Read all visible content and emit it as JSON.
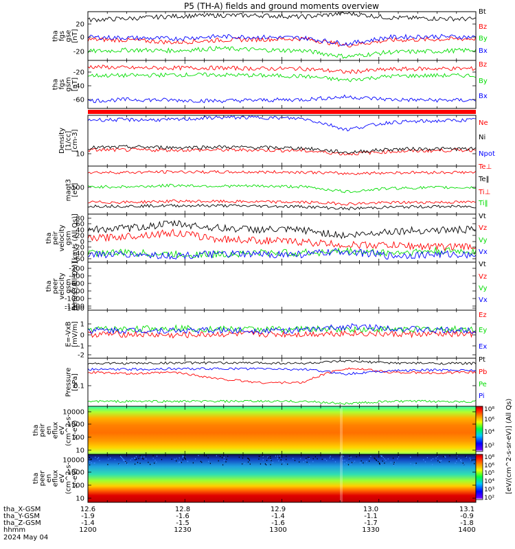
{
  "title": "P5 (TH-A) fields and ground moments overview",
  "colors": {
    "black": "#000000",
    "red": "#ff0000",
    "green": "#00dd00",
    "blue": "#0000ff"
  },
  "panels": [
    {
      "id": "fgs_gse",
      "ylabel": [
        "tha",
        "fgs",
        "gse",
        "[nT]"
      ],
      "scale": "linear",
      "range": [
        -30,
        35
      ],
      "ticks": [
        "20",
        "0",
        "-20"
      ],
      "legend": [
        {
          "text": "Bt",
          "color": "black"
        },
        {
          "text": "Bz",
          "color": "red"
        },
        {
          "text": "By",
          "color": "green"
        },
        {
          "text": "Bx",
          "color": "blue"
        }
      ]
    },
    {
      "id": "fgs_gsm",
      "ylabel": [
        "tha",
        "fgs",
        "gsm",
        "[nT]"
      ],
      "scale": "linear",
      "range": [
        -75,
        -5
      ],
      "ticks": [
        "-20",
        "-40",
        "-60"
      ],
      "legend": [
        {
          "text": "Bz",
          "color": "red"
        },
        {
          "text": "By",
          "color": "green"
        },
        {
          "text": "Bx",
          "color": "blue"
        }
      ]
    },
    {
      "id": "density",
      "ylabel": [
        "Density",
        "[1/cc]",
        "[cm-3]"
      ],
      "scale": "log",
      "range": [
        6,
        30
      ],
      "ticks": [
        "10"
      ],
      "legend": [
        {
          "text": "Ne",
          "color": "red"
        },
        {
          "text": "Ni",
          "color": "black"
        },
        {
          "text": "Npot",
          "color": "blue"
        }
      ]
    },
    {
      "id": "temperature",
      "ylabel": [
        "magt3",
        "[eV]"
      ],
      "scale": "log",
      "range": [
        20,
        400
      ],
      "ticks": [
        "100"
      ],
      "legend": [
        {
          "text": "Te⊥",
          "color": "red"
        },
        {
          "text": "Te‖",
          "color": "black"
        },
        {
          "text": "Ti⊥",
          "color": "red"
        },
        {
          "text": "Ti‖",
          "color": "green"
        }
      ]
    },
    {
      "id": "peir_velocity",
      "ylabel": [
        "tha",
        "peir",
        "velocity",
        "gsm",
        "[km/s (All Qs)]"
      ],
      "scale": "linear",
      "range": [
        -65,
        90
      ],
      "ticks": [
        "80",
        "60",
        "40",
        "20",
        "0",
        "-20",
        "-40",
        "-60"
      ],
      "legend": [
        {
          "text": "Vt",
          "color": "black"
        },
        {
          "text": "Vz",
          "color": "red"
        },
        {
          "text": "Vy",
          "color": "green"
        },
        {
          "text": "Vx",
          "color": "blue"
        }
      ]
    },
    {
      "id": "peer_velocity",
      "ylabel": [
        "tha",
        "peer",
        "velocity",
        "gsm",
        "[km/s (All Qs)]"
      ],
      "scale": "linear",
      "range": [
        -1500,
        -150
      ],
      "ticks": [
        "-200",
        "-400",
        "-600",
        "-800",
        "-1000",
        "-1200",
        "-1400"
      ],
      "legend": [
        {
          "text": "Vt",
          "color": "black"
        },
        {
          "text": "Vz",
          "color": "red"
        },
        {
          "text": "Vy",
          "color": "green"
        },
        {
          "text": "Vx",
          "color": "blue"
        }
      ]
    },
    {
      "id": "efield",
      "ylabel": [
        "E=-VxB",
        "[mV/m]"
      ],
      "scale": "linear",
      "range": [
        -2.2,
        1.6
      ],
      "ticks": [
        "1",
        "0",
        "-1",
        "-2"
      ],
      "legend": [
        {
          "text": "Ez",
          "color": "red"
        },
        {
          "text": "Ey",
          "color": "green"
        },
        {
          "text": "Ex",
          "color": "blue"
        }
      ]
    },
    {
      "id": "pressure",
      "ylabel": [
        "Pressure",
        "[nPa]"
      ],
      "scale": "log",
      "range": [
        0.03,
        0.5
      ],
      "ticks": [
        "0.1"
      ],
      "legend": [
        {
          "text": "Pt",
          "color": "black"
        },
        {
          "text": "Pb",
          "color": "red"
        },
        {
          "text": "Pe",
          "color": "green"
        },
        {
          "text": "Pi",
          "color": "blue"
        }
      ]
    },
    {
      "id": "peir_eflux",
      "ylabel": [
        "tha",
        "peir",
        "en",
        "eflux",
        "eV",
        "(cm^2-s-",
        "sr-eV)"
      ],
      "scale": "log",
      "range": [
        10,
        15000
      ],
      "ticks": [
        "10000",
        "1000",
        "100",
        "10"
      ],
      "type": "spectrogram"
    },
    {
      "id": "peer_eflux",
      "ylabel": [
        "tha",
        "peer",
        "en",
        "eflux",
        "eV",
        "(cm^2-s-",
        "sr-eV)"
      ],
      "scale": "log",
      "range": [
        10,
        15000
      ],
      "ticks": [
        "10000",
        "1000",
        "100",
        "10"
      ],
      "type": "spectrogram"
    }
  ],
  "colorbar": {
    "label": "[eV/(cm^2-s-sr-eV)] (All Qs)",
    "labels_ion": [
      "10⁸",
      "10⁶",
      "10⁴",
      "10²"
    ],
    "labels_elec": [
      "10⁸",
      "10⁶",
      "10⁵",
      "10⁴",
      "10³",
      "10²"
    ]
  },
  "xaxis": {
    "tick_labels": [
      {
        "t": "1200",
        "x": "12.6",
        "y": "-1.9",
        "z": "-1.4"
      },
      {
        "t": "1230",
        "x": "12.8",
        "y": "-1.6",
        "z": "-1.5"
      },
      {
        "t": "1300",
        "x": "12.9",
        "y": "-1.4",
        "z": "-1.6"
      },
      {
        "t": "1330",
        "x": "13.0",
        "y": "-1.1",
        "z": "-1.7"
      },
      {
        "t": "1400",
        "x": "13.1",
        "y": "-0.9",
        "z": "-1.8"
      }
    ],
    "row_labels": [
      "tha_X-GSM",
      "tha_Y-GSM",
      "tha_Z-GSM",
      "hhmm"
    ],
    "date": "2024 May 04"
  },
  "chart_data": {
    "type": "line",
    "title": "P5 (TH-A) fields and ground moments overview",
    "xlabel": "hhmm",
    "x_range": [
      "1200",
      "1400"
    ],
    "notes": "Multi-panel time series; values estimated from axes. Values given at 1200,1215,1230,1245,1300,1315,1325,1330,1345,1400.",
    "x": [
      "1200",
      "1215",
      "1230",
      "1245",
      "1300",
      "1315",
      "1325",
      "1330",
      "1345",
      "1400"
    ],
    "panels": [
      {
        "name": "fgs_gse",
        "ylim": [
          -30,
          35
        ],
        "series": [
          {
            "name": "Bt",
            "values": [
              24,
              26,
              29,
              30,
              30,
              28,
              33,
              27,
              26,
              25
            ]
          },
          {
            "name": "Bz",
            "values": [
              -2,
              -3,
              -6,
              -3,
              -2,
              -1,
              -10,
              -3,
              -2,
              -1
            ]
          },
          {
            "name": "By",
            "values": [
              -18,
              -16,
              -17,
              -14,
              -16,
              -17,
              -25,
              -19,
              -18,
              -16
            ]
          },
          {
            "name": "Bx",
            "values": [
              1,
              0,
              -1,
              2,
              1,
              0,
              -8,
              1,
              2,
              1
            ]
          }
        ]
      },
      {
        "name": "fgs_gsm",
        "ylim": [
          -75,
          -5
        ],
        "series": [
          {
            "name": "Bz",
            "values": [
              -14,
              -16,
              -16,
              -16,
              -17,
              -17,
              -22,
              -18,
              -17,
              -17
            ]
          },
          {
            "name": "By",
            "values": [
              -27,
              -27,
              -26,
              -26,
              -27,
              -28,
              -34,
              -28,
              -27,
              -27
            ]
          },
          {
            "name": "Bx",
            "values": [
              -64,
              -62,
              -63,
              -64,
              -63,
              -62,
              -58,
              -62,
              -63,
              -63
            ]
          }
        ]
      },
      {
        "name": "density",
        "scale": "log",
        "ylim": [
          6,
          30
        ],
        "series": [
          {
            "name": "Ne",
            "values": [
              10,
              10,
              10,
              10,
              10,
              9.8,
              8.8,
              9.5,
              9.8,
              10
            ]
          },
          {
            "name": "Ni",
            "values": [
              10.7,
              11,
              10.8,
              11,
              10.8,
              10.6,
              9.2,
              10.2,
              10.4,
              10.3
            ]
          },
          {
            "name": "Npot",
            "values": [
              26,
              26,
              26,
              28,
              28,
              27,
              19,
              24,
              25,
              26
            ]
          }
        ]
      },
      {
        "name": "temperature",
        "scale": "log",
        "ylim": [
          20,
          400
        ],
        "series": [
          {
            "name": "Te⊥",
            "values": [
              42,
              42,
              45,
              44,
              43,
              42,
              38,
              41,
              42,
              42
            ]
          },
          {
            "name": "Te‖",
            "values": [
              33,
              33,
              34,
              34,
              33,
              32,
              28,
              31,
              32,
              32
            ]
          },
          {
            "name": "Ti⊥",
            "values": [
              270,
              270,
              280,
              275,
              275,
              275,
              250,
              265,
              270,
              270
            ]
          },
          {
            "name": "Ti‖",
            "values": [
              110,
              110,
              120,
              115,
              115,
              110,
              80,
              100,
              105,
              105
            ]
          }
        ]
      },
      {
        "name": "peir_velocity",
        "ylim": [
          -65,
          90
        ],
        "series": [
          {
            "name": "Vt",
            "values": [
              40,
              45,
              60,
              45,
              40,
              38,
              20,
              35,
              38,
              40
            ]
          },
          {
            "name": "Vz",
            "values": [
              10,
              20,
              30,
              10,
              5,
              0,
              -10,
              -10,
              -15,
              -15
            ]
          },
          {
            "name": "Vy",
            "values": [
              -35,
              -35,
              -40,
              -40,
              -35,
              -35,
              -30,
              -35,
              -30,
              -30
            ]
          },
          {
            "name": "Vx",
            "values": [
              -40,
              -40,
              -45,
              -40,
              -40,
              -40,
              -30,
              -45,
              -40,
              -40
            ]
          }
        ]
      },
      {
        "name": "efield",
        "ylim": [
          -2.2,
          1.6
        ],
        "series": [
          {
            "name": "Ez",
            "values": [
              -0.3,
              -0.3,
              -0.4,
              -0.3,
              -0.3,
              -0.3,
              -0.2,
              -0.3,
              -0.3,
              -0.3
            ]
          },
          {
            "name": "Ey",
            "values": [
              0.1,
              0.1,
              0.2,
              0.1,
              0.1,
              0.1,
              0.1,
              0.1,
              0.1,
              0.1
            ]
          },
          {
            "name": "Ex",
            "values": [
              0,
              0,
              0,
              0,
              0,
              0,
              0.3,
              0.2,
              0,
              0
            ]
          }
        ]
      },
      {
        "name": "pressure",
        "scale": "log",
        "ylim": [
          0.03,
          0.5
        ],
        "series": [
          {
            "name": "Pt",
            "values": [
              0.37,
              0.37,
              0.38,
              0.38,
              0.38,
              0.37,
              0.42,
              0.38,
              0.37,
              0.37
            ]
          },
          {
            "name": "Pb",
            "values": [
              0.22,
              0.2,
              0.22,
              0.15,
              0.12,
              0.12,
              0.28,
              0.22,
              0.21,
              0.22
            ]
          },
          {
            "name": "Pe",
            "values": [
              0.04,
              0.04,
              0.04,
              0.04,
              0.04,
              0.04,
              0.035,
              0.04,
              0.04,
              0.04
            ]
          },
          {
            "name": "Pi",
            "values": [
              0.26,
              0.26,
              0.27,
              0.27,
              0.27,
              0.26,
              0.2,
              0.24,
              0.25,
              0.25
            ]
          }
        ]
      }
    ]
  }
}
